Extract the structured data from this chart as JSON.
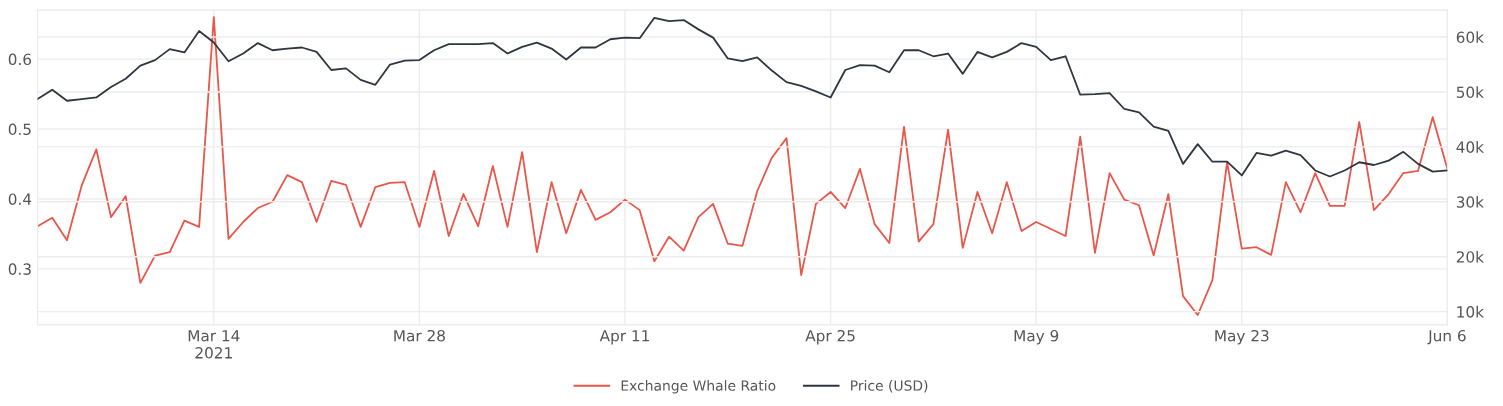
{
  "chart_data": {
    "type": "line",
    "x": [
      "2021-03-02",
      "2021-03-03",
      "2021-03-04",
      "2021-03-05",
      "2021-03-06",
      "2021-03-07",
      "2021-03-08",
      "2021-03-09",
      "2021-03-10",
      "2021-03-11",
      "2021-03-12",
      "2021-03-13",
      "2021-03-14",
      "2021-03-15",
      "2021-03-16",
      "2021-03-17",
      "2021-03-18",
      "2021-03-19",
      "2021-03-20",
      "2021-03-21",
      "2021-03-22",
      "2021-03-23",
      "2021-03-24",
      "2021-03-25",
      "2021-03-26",
      "2021-03-27",
      "2021-03-28",
      "2021-03-29",
      "2021-03-30",
      "2021-03-31",
      "2021-04-01",
      "2021-04-02",
      "2021-04-03",
      "2021-04-04",
      "2021-04-05",
      "2021-04-06",
      "2021-04-07",
      "2021-04-08",
      "2021-04-09",
      "2021-04-10",
      "2021-04-11",
      "2021-04-12",
      "2021-04-13",
      "2021-04-14",
      "2021-04-15",
      "2021-04-16",
      "2021-04-17",
      "2021-04-18",
      "2021-04-19",
      "2021-04-20",
      "2021-04-21",
      "2021-04-22",
      "2021-04-23",
      "2021-04-24",
      "2021-04-25",
      "2021-04-26",
      "2021-04-27",
      "2021-04-28",
      "2021-04-29",
      "2021-04-30",
      "2021-05-01",
      "2021-05-02",
      "2021-05-03",
      "2021-05-04",
      "2021-05-05",
      "2021-05-06",
      "2021-05-07",
      "2021-05-08",
      "2021-05-09",
      "2021-05-10",
      "2021-05-11",
      "2021-05-12",
      "2021-05-13",
      "2021-05-14",
      "2021-05-15",
      "2021-05-16",
      "2021-05-17",
      "2021-05-18",
      "2021-05-19",
      "2021-05-20",
      "2021-05-21",
      "2021-05-22",
      "2021-05-23",
      "2021-05-24",
      "2021-05-25",
      "2021-05-26",
      "2021-05-27",
      "2021-05-28",
      "2021-05-29",
      "2021-05-30",
      "2021-05-31",
      "2021-06-01",
      "2021-06-02",
      "2021-06-03",
      "2021-06-04",
      "2021-06-05",
      "2021-06-06"
    ],
    "series": [
      {
        "name": "Exchange Whale Ratio",
        "color": "#e8574a",
        "values": [
          0.361,
          0.373,
          0.341,
          0.419,
          0.471,
          0.374,
          0.404,
          0.28,
          0.319,
          0.324,
          0.369,
          0.36,
          0.66,
          0.343,
          0.367,
          0.387,
          0.396,
          0.434,
          0.424,
          0.367,
          0.426,
          0.42,
          0.36,
          0.417,
          0.423,
          0.424,
          0.36,
          0.44,
          0.347,
          0.407,
          0.361,
          0.447,
          0.36,
          0.467,
          0.324,
          0.424,
          0.351,
          0.413,
          0.37,
          0.381,
          0.399,
          0.384,
          0.311,
          0.346,
          0.326,
          0.374,
          0.393,
          0.336,
          0.333,
          0.411,
          0.459,
          0.487,
          0.291,
          0.393,
          0.41,
          0.387,
          0.443,
          0.364,
          0.337,
          0.503,
          0.339,
          0.364,
          0.499,
          0.33,
          0.41,
          0.351,
          0.424,
          0.354,
          0.367,
          0.357,
          0.347,
          0.489,
          0.323,
          0.437,
          0.399,
          0.391,
          0.319,
          0.407,
          0.261,
          0.234,
          0.284,
          0.453,
          0.329,
          0.331,
          0.32,
          0.424,
          0.381,
          0.437,
          0.39,
          0.39,
          0.51,
          0.384,
          0.407,
          0.437,
          0.44,
          0.517,
          0.443
        ]
      },
      {
        "name": "Price (USD)",
        "color": "#2f3640",
        "axis": "y2",
        "values": [
          48700,
          50400,
          48400,
          48700,
          49000,
          50900,
          52400,
          54800,
          55800,
          57800,
          57200,
          61100,
          59000,
          55600,
          57000,
          58900,
          57600,
          57900,
          58100,
          57300,
          54000,
          54300,
          52200,
          51300,
          55000,
          55700,
          55800,
          57600,
          58700,
          58700,
          58700,
          58900,
          57000,
          58200,
          59000,
          57900,
          55900,
          58100,
          58100,
          59600,
          59900,
          59800,
          63500,
          62900,
          63100,
          61400,
          59900,
          56100,
          55600,
          56300,
          53900,
          51800,
          51100,
          50100,
          49000,
          54000,
          54900,
          54800,
          53600,
          57600,
          57600,
          56500,
          57000,
          53300,
          57300,
          56300,
          57300,
          58900,
          58200,
          55800,
          56500,
          49500,
          49600,
          49800,
          46900,
          46300,
          43700,
          42900,
          36900,
          40500,
          37300,
          37300,
          34800,
          38900,
          38400,
          39300,
          38500,
          35700,
          34600,
          35700,
          37200,
          36700,
          37500,
          39100,
          36900,
          35500,
          35700
        ]
      }
    ],
    "xlim": [
      "2021-03-02",
      "2021-06-06"
    ],
    "xticks": [
      {
        "value": "2021-03-14",
        "label": "Mar 14\n2021"
      },
      {
        "value": "2021-03-28",
        "label": "Mar 28"
      },
      {
        "value": "2021-04-11",
        "label": "Apr 11"
      },
      {
        "value": "2021-04-25",
        "label": "Apr 25"
      },
      {
        "value": "2021-05-09",
        "label": "May 9"
      },
      {
        "value": "2021-05-23",
        "label": "May 23"
      },
      {
        "value": "2021-06-06",
        "label": "Jun 6"
      }
    ],
    "ylim": [
      0.22,
      0.67
    ],
    "yticks": [
      0.3,
      0.4,
      0.5,
      0.6
    ],
    "y2lim": [
      7600,
      64900
    ],
    "y2ticks": [
      {
        "value": 10000,
        "label": "10k"
      },
      {
        "value": 20000,
        "label": "20k"
      },
      {
        "value": 30000,
        "label": "30k"
      },
      {
        "value": 40000,
        "label": "40k"
      },
      {
        "value": 50000,
        "label": "50k"
      },
      {
        "value": 60000,
        "label": "60k"
      }
    ],
    "grid": true,
    "legend": "bottom"
  }
}
